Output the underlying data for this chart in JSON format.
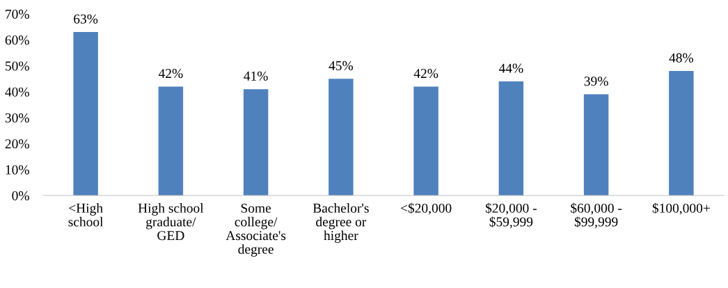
{
  "chart_data": {
    "type": "bar",
    "categories": [
      "<High\nschool",
      "High school\ngraduate/\nGED",
      "Some\ncollege/\nAssociate's\ndegree",
      "Bachelor's\ndegree or\nhigher",
      "<$20,000",
      "$20,000 -\n$59,999",
      "$60,000 -\n$99,999",
      "$100,000+"
    ],
    "values": [
      63,
      42,
      41,
      45,
      42,
      44,
      39,
      48
    ],
    "value_labels": [
      "63%",
      "42%",
      "41%",
      "45%",
      "42%",
      "44%",
      "39%",
      "48%"
    ],
    "color": "#4f81bd",
    "ylim": [
      0,
      70
    ],
    "yticks": [
      {
        "value": 0,
        "label": "0%"
      },
      {
        "value": 10,
        "label": "10%"
      },
      {
        "value": 20,
        "label": "20%"
      },
      {
        "value": 30,
        "label": "30%"
      },
      {
        "value": 40,
        "label": "40%"
      },
      {
        "value": 50,
        "label": "50%"
      },
      {
        "value": 60,
        "label": "60%"
      },
      {
        "value": 70,
        "label": "70%"
      }
    ],
    "grid": false,
    "legend": false
  }
}
